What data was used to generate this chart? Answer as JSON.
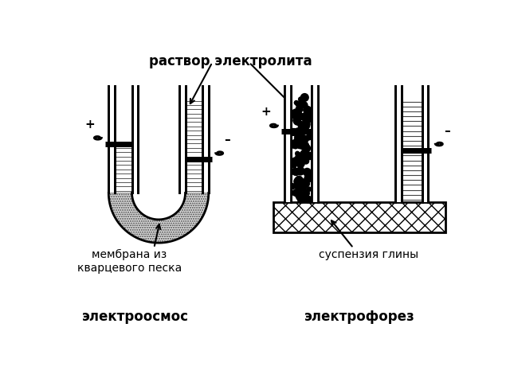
{
  "label_elektroosmos": "электроосмос",
  "label_elektroforez": "электрофорез",
  "label_membrana": "мембрана из\nкварцевого песка",
  "label_suspenziya": "суспензия глины",
  "label_rastvor": "раствор электролита",
  "plus_sign": "+",
  "minus_sign": "–",
  "bg_color": "#ffffff",
  "line_color": "#000000"
}
